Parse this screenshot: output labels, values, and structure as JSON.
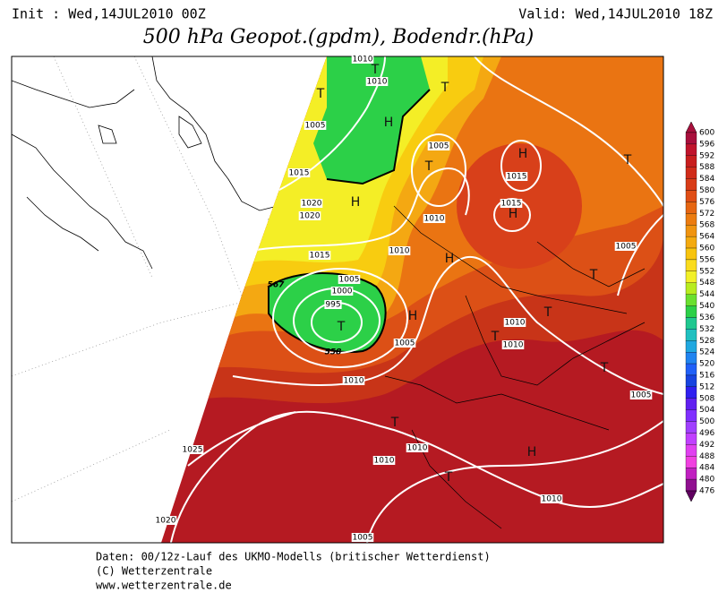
{
  "header": {
    "init": "Init : Wed,14JUL2010 00Z",
    "valid": "Valid: Wed,14JUL2010 18Z",
    "title": "500 hPa Geopot.(gpdm), Bodendr.(hPa)"
  },
  "map": {
    "labels": [
      "1010",
      "T",
      "1010",
      "T",
      "T",
      "H",
      "1005",
      "1005",
      "H",
      "T",
      "1015",
      "1015",
      "T",
      "H",
      "1020",
      "1015",
      "H",
      "1010",
      "1020",
      "1015",
      "1010",
      "H",
      "1005",
      "T",
      "1005",
      "567",
      "1000",
      "995",
      "H",
      "T",
      "T",
      "1010",
      "T",
      "1010",
      "1005",
      "558",
      "T",
      "1010",
      "1005",
      "T",
      "1010",
      "H",
      "1025",
      "1010",
      "T",
      "1010",
      "1020",
      "1005"
    ]
  },
  "legend": {
    "ticks": [
      "600",
      "596",
      "592",
      "588",
      "584",
      "580",
      "576",
      "572",
      "568",
      "564",
      "560",
      "556",
      "552",
      "548",
      "544",
      "540",
      "536",
      "532",
      "528",
      "524",
      "520",
      "516",
      "512",
      "508",
      "504",
      "500",
      "496",
      "492",
      "488",
      "484",
      "480",
      "476"
    ],
    "colors": [
      "#a80f3c",
      "#c0142c",
      "#c81e1e",
      "#d02c1a",
      "#d83c18",
      "#e04e16",
      "#e66612",
      "#ec7c10",
      "#f09410",
      "#f4aa10",
      "#f8c40e",
      "#fadc1e",
      "#f2f028",
      "#b8ec20",
      "#6ae030",
      "#2cd048",
      "#20c890",
      "#20c0c0",
      "#20a8e0",
      "#2084f0",
      "#2060f8",
      "#1844e0",
      "#3020f0",
      "#6020f0",
      "#8030ff",
      "#a040ff",
      "#c040ff",
      "#e040f0",
      "#f040e0",
      "#c020c0",
      "#901090",
      "#600060"
    ]
  },
  "footer": {
    "line1": "Daten: 00/12z-Lauf des UKMO-Modells (britischer Wetterdienst)",
    "line2": "(C) Wetterzentrale",
    "line3": "www.wetterzentrale.de"
  }
}
